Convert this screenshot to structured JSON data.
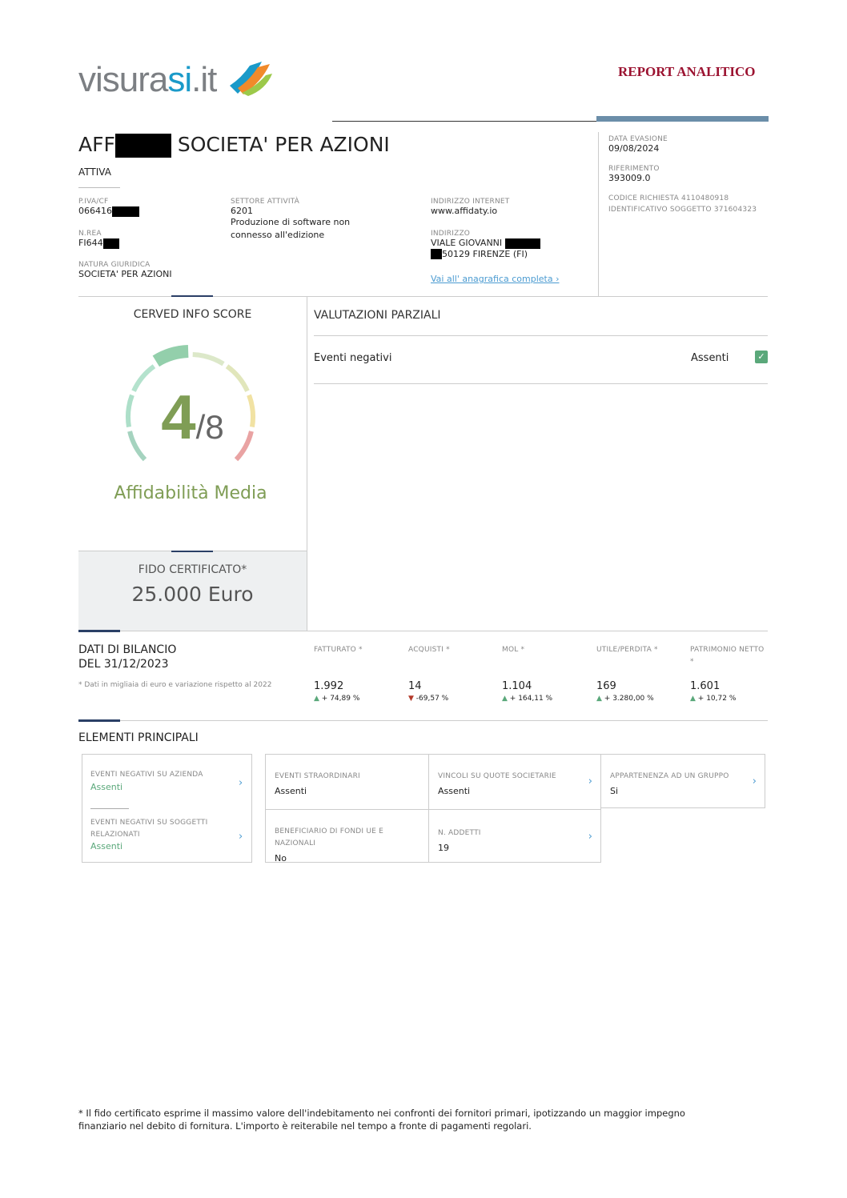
{
  "header": {
    "logo_text_a": "visura",
    "logo_text_b": "si",
    "logo_text_c": ".it",
    "report_title": "REPORT ANALITICO"
  },
  "company": {
    "name_prefix": "AFF",
    "name_suffix": "SOCIETA' PER AZIONI",
    "status": "ATTIVA",
    "piva_label": "P.IVA/CF",
    "piva_value": "066416",
    "rea_label": "N.REA",
    "rea_value": "FI644",
    "natura_label": "NATURA GIURIDICA",
    "natura_value": "SOCIETA' PER AZIONI",
    "settore_label": "SETTORE ATTIVITÀ",
    "settore_code": "6201",
    "settore_desc": "Produzione di software non connesso all'edizione",
    "web_label": "INDIRIZZO INTERNET",
    "web_value": "www.affidaty.io",
    "addr_label": "INDIRIZZO",
    "addr_line1": "VIALE GIOVANNI",
    "addr_line2": "50129 FIRENZE (FI)",
    "link_label": "Vai all' anagrafica completa ›"
  },
  "meta": {
    "data_label": "DATA EVASIONE",
    "data_value": "09/08/2024",
    "rif_label": "RIFERIMENTO",
    "rif_value": "393009.0",
    "codice": "CODICE RICHIESTA 4110480918",
    "identificativo": "IDENTIFICATIVO SOGGETTO 371604323"
  },
  "score": {
    "title": "CERVED INFO SCORE",
    "value": "4",
    "max": "/8",
    "score_num": 4,
    "segments": 8,
    "label": "Affidabilità Media",
    "colors": [
      "#a5d3bf",
      "#addfc9",
      "#b4e2cd",
      "#93cfab",
      "#dce8c9",
      "#e1e6bb",
      "#f1e2a3",
      "#e9a3a3"
    ]
  },
  "fido": {
    "label": "FIDO CERTIFICATO*",
    "value": "25.000  Euro"
  },
  "valutazioni": {
    "title": "VALUTAZIONI PARZIALI",
    "rows": [
      {
        "label": "Eventi negativi",
        "value": "Assenti",
        "icon": "check-icon"
      }
    ]
  },
  "bilancio": {
    "title1": "DATI DI BILANCIO",
    "title2": "DEL 31/12/2023",
    "note": "* Dati in migliaia di euro e variazione rispetto al 2022",
    "items": [
      {
        "label": "FATTURATO *",
        "value": "1.992",
        "delta": "+ 74,89 %",
        "trend": "up"
      },
      {
        "label": "ACQUISTI *",
        "value": "14",
        "delta": "-69,57 %",
        "trend": "down"
      },
      {
        "label": "MOL *",
        "value": "1.104",
        "delta": "+ 164,11 %",
        "trend": "up"
      },
      {
        "label": "UTILE/PERDITA *",
        "value": "169",
        "delta": "+ 3.280,00 %",
        "trend": "up"
      },
      {
        "label": "PATRIMONIO NETTO *",
        "value": "1.601",
        "delta": "+ 10,72 %",
        "trend": "up"
      }
    ],
    "up_color": "#5aa87a",
    "down_color": "#b33a2a"
  },
  "elementi": {
    "title": "ELEMENTI PRINCIPALI",
    "left": [
      {
        "label": "EVENTI NEGATIVI SU AZIENDA",
        "value": "Assenti"
      },
      {
        "label": "EVENTI NEGATIVI SU SOGGETTI RELAZIONATI",
        "value": "Assenti"
      }
    ],
    "grid": [
      {
        "label": "EVENTI STRAORDINARI",
        "value": "Assenti"
      },
      {
        "label": "VINCOLI SU QUOTE SOCIETARIE",
        "value": "Assenti"
      },
      {
        "label": "APPARTENENZA AD UN GRUPPO",
        "value": "Si"
      },
      {
        "label": "BENEFICIARIO DI FONDI UE E NAZIONALI",
        "value": "No"
      },
      {
        "label": "N. ADDETTI",
        "value": "19"
      }
    ]
  },
  "footnote": "* Il fido certificato esprime il massimo valore dell'indebitamento nei confronti dei fornitori primari, ipotizzando un maggior impegno finanziario nel debito di fornitura. L'importo è reiterabile nel tempo a fronte di pagamenti regolari."
}
